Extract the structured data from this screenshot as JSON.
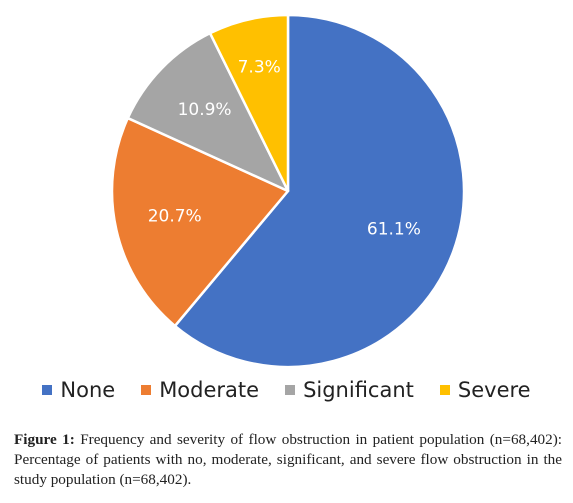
{
  "chart_data": {
    "type": "pie",
    "categories": [
      "None",
      "Moderate",
      "Significant",
      "Severe"
    ],
    "values": [
      61.1,
      20.7,
      10.9,
      7.3
    ],
    "data_labels": [
      "61.1%",
      "20.7%",
      "10.9%",
      "7.3%"
    ],
    "colors": [
      "#4472C4",
      "#ED7D31",
      "#A5A5A5",
      "#FFC000"
    ],
    "legend_position": "bottom",
    "start_at": "top",
    "direction": "clockwise"
  },
  "caption": {
    "label": "Figure 1:",
    "text": "Frequency and severity of flow obstruction in patient population (n=68,402): Percentage of patients with no, moderate, significant, and severe flow obstruction in the study population (n=68,402)."
  }
}
